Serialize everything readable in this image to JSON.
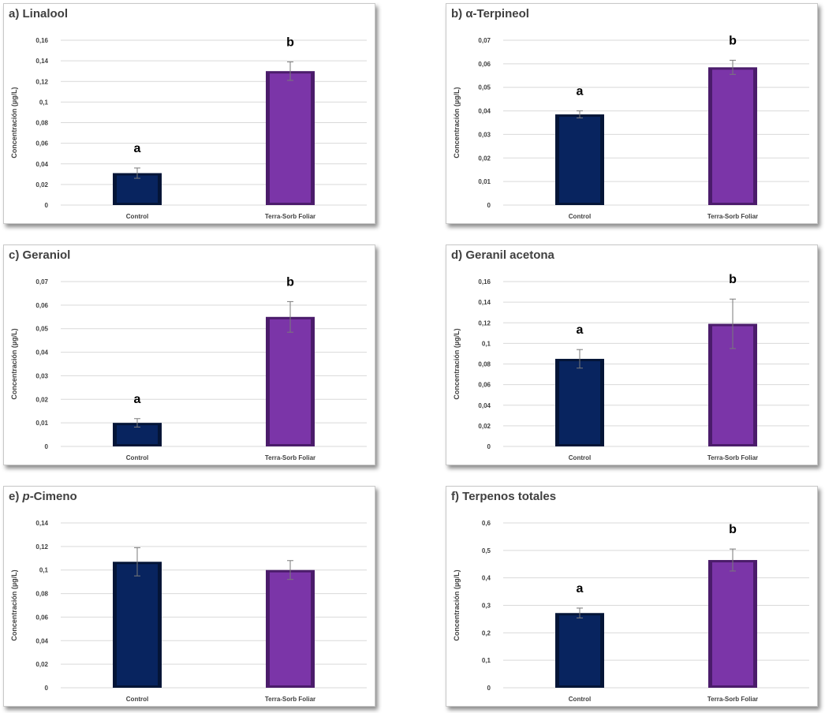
{
  "chart_data": [
    {
      "type": "bar",
      "title": "a) Linalool",
      "ylabel": "Concentración  (µg/L)",
      "categories": [
        "Control",
        "Terra-Sorb Foliar"
      ],
      "values": [
        0.031,
        0.13
      ],
      "errors": [
        0.005,
        0.009
      ],
      "letters": [
        "a",
        "b"
      ],
      "ylim": [
        0,
        0.16
      ],
      "yticks": [
        0,
        0.02,
        0.04,
        0.06,
        0.08,
        0.1,
        0.12,
        0.14,
        0.16
      ],
      "ytick_labels": [
        "0",
        "0,02",
        "0,04",
        "0,06",
        "0,08",
        "0,1",
        "0,12",
        "0,14",
        "0,16"
      ]
    },
    {
      "type": "bar",
      "title": "b) α-Terpineol",
      "ylabel": "Concentración  (µg/L)",
      "categories": [
        "Control",
        "Terra-Sorb Foliar"
      ],
      "values": [
        0.0385,
        0.0585
      ],
      "errors": [
        0.0015,
        0.003
      ],
      "letters": [
        "a",
        "b"
      ],
      "ylim": [
        0,
        0.07
      ],
      "yticks": [
        0,
        0.01,
        0.02,
        0.03,
        0.04,
        0.05,
        0.06,
        0.07
      ],
      "ytick_labels": [
        "0",
        "0,01",
        "0,02",
        "0,03",
        "0,04",
        "0,05",
        "0,06",
        "0,07"
      ]
    },
    {
      "type": "bar",
      "title": "c) Geraniol",
      "ylabel": "Concentración  (µg/L)",
      "categories": [
        "Control",
        "Terra-Sorb Foliar"
      ],
      "values": [
        0.01,
        0.055
      ],
      "errors": [
        0.0018,
        0.0065
      ],
      "letters": [
        "a",
        "b"
      ],
      "ylim": [
        0,
        0.07
      ],
      "yticks": [
        0,
        0.01,
        0.02,
        0.03,
        0.04,
        0.05,
        0.06,
        0.07
      ],
      "ytick_labels": [
        "0",
        "0,01",
        "0,02",
        "0,03",
        "0,04",
        "0,05",
        "0,06",
        "0,07"
      ]
    },
    {
      "type": "bar",
      "title": "d) Geranil acetona",
      "ylabel": "Concentración  (µg/L)",
      "categories": [
        "Control",
        "Terra-Sorb Foliar"
      ],
      "values": [
        0.085,
        0.119
      ],
      "errors": [
        0.009,
        0.024
      ],
      "letters": [
        "a",
        "b"
      ],
      "ylim": [
        0,
        0.16
      ],
      "yticks": [
        0,
        0.02,
        0.04,
        0.06,
        0.08,
        0.1,
        0.12,
        0.14,
        0.16
      ],
      "ytick_labels": [
        "0",
        "0,02",
        "0,04",
        "0,06",
        "0,08",
        "0,1",
        "0,12",
        "0,14",
        "0,16"
      ]
    },
    {
      "type": "bar",
      "title": "e) p-Cimeno",
      "title_prefix": "e) ",
      "title_italic": "p",
      "title_suffix": "-Cimeno",
      "ylabel": "Concentración  (µg/L)",
      "categories": [
        "Control",
        "Terra-Sorb Foliar"
      ],
      "values": [
        0.107,
        0.1
      ],
      "errors": [
        0.012,
        0.008
      ],
      "letters": [
        "",
        ""
      ],
      "ylim": [
        0,
        0.14
      ],
      "yticks": [
        0,
        0.02,
        0.04,
        0.06,
        0.08,
        0.1,
        0.12,
        0.14
      ],
      "ytick_labels": [
        "0",
        "0,02",
        "0,04",
        "0,06",
        "0,08",
        "0,1",
        "0,12",
        "0,14"
      ]
    },
    {
      "type": "bar",
      "title": "f) Terpenos totales",
      "ylabel": "Concentración  (µg/L)",
      "categories": [
        "Control",
        "Terra-Sorb Foliar"
      ],
      "values": [
        0.272,
        0.465
      ],
      "errors": [
        0.018,
        0.04
      ],
      "letters": [
        "a",
        "b"
      ],
      "ylim": [
        0,
        0.6
      ],
      "yticks": [
        0,
        0.1,
        0.2,
        0.3,
        0.4,
        0.5,
        0.6
      ],
      "ytick_labels": [
        "0",
        "0,1",
        "0,2",
        "0,3",
        "0,4",
        "0,5",
        "0,6"
      ]
    }
  ],
  "colors": {
    "control_face": "#08245f",
    "control_edge": "#041537",
    "treated_face": "#7b35a8",
    "treated_edge": "#4b1c6b",
    "grid": "#d9d9d9",
    "text": "#404040"
  }
}
